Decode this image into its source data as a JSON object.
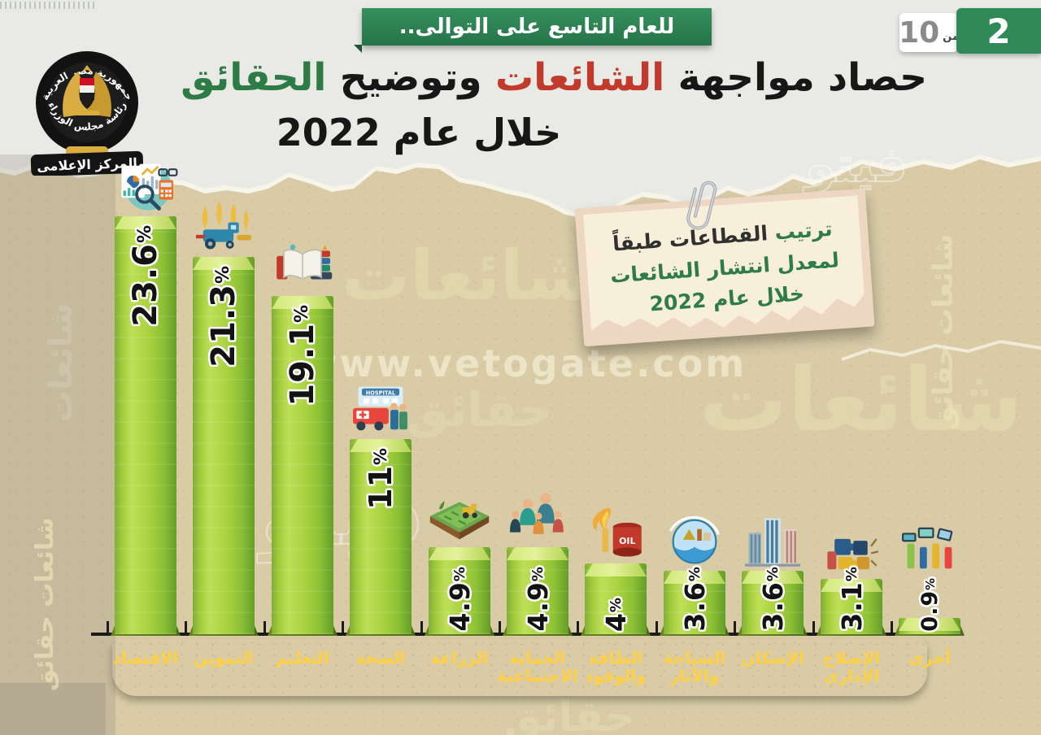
{
  "header": {
    "ribbon_text": "للعام التاسع على التوالى..",
    "page_badge": {
      "current": "2",
      "of_label": "من",
      "total": "10"
    },
    "title": {
      "part1": "حصاد مواجهة ",
      "part2_red": "الشائعات",
      "part3": " وتوضيح ",
      "part4_green": "الحقائق",
      "line2": "خلال عام 2022"
    },
    "logo": {
      "ring_top": "جمهورية مصر العربية",
      "ring_bottom": "رئاسة مجلس الوزراء",
      "banner": "المركز الإعلامى"
    }
  },
  "note_card": {
    "line1_green": "ترتيب ",
    "line1_dark": "القطاعات طبقاً",
    "line2": "لمعدل انتشار الشائعات",
    "line3": "خلال عام 2022"
  },
  "watermarks": {
    "site": "www.vetogate.com",
    "word_rumors": "شائعات",
    "word_facts": "حقائق",
    "pair": "شائعات حقائق",
    "logo_word": "فيتو"
  },
  "chart_data": {
    "type": "bar",
    "title": "ترتيب القطاعات طبقاً لمعدل انتشار الشائعات خلال عام 2022",
    "unit": "%",
    "categories": [
      "الاقتصاد",
      "التموين",
      "التعليم",
      "الصحة",
      "الزراعة",
      "الحماية الاجتماعية",
      "الطاقة والوقود",
      "السياحة والآثار",
      "الإسكان",
      "الإصلاح الإدارى",
      "أخرى"
    ],
    "values": [
      23.6,
      21.3,
      19.1,
      11,
      4.9,
      4.9,
      4,
      3.6,
      3.6,
      3.1,
      0.9
    ],
    "value_labels": [
      "23.6",
      "21.3",
      "19.1",
      "11",
      "4.9",
      "4.9",
      "4",
      "3.6",
      "3.6",
      "3.1",
      "0.9"
    ],
    "icons": [
      "economy-icon",
      "supply-icon",
      "education-icon",
      "health-icon",
      "agriculture-icon",
      "social-protection-icon",
      "energy-fuel-icon",
      "tourism-icon",
      "housing-icon",
      "admin-reform-icon",
      "other-icon"
    ],
    "ylim": [
      0,
      25
    ],
    "legend": "none",
    "grid": false,
    "bar_color": "#9ecb3b",
    "band_color": "#d96128",
    "label_color": "#ffd042"
  }
}
